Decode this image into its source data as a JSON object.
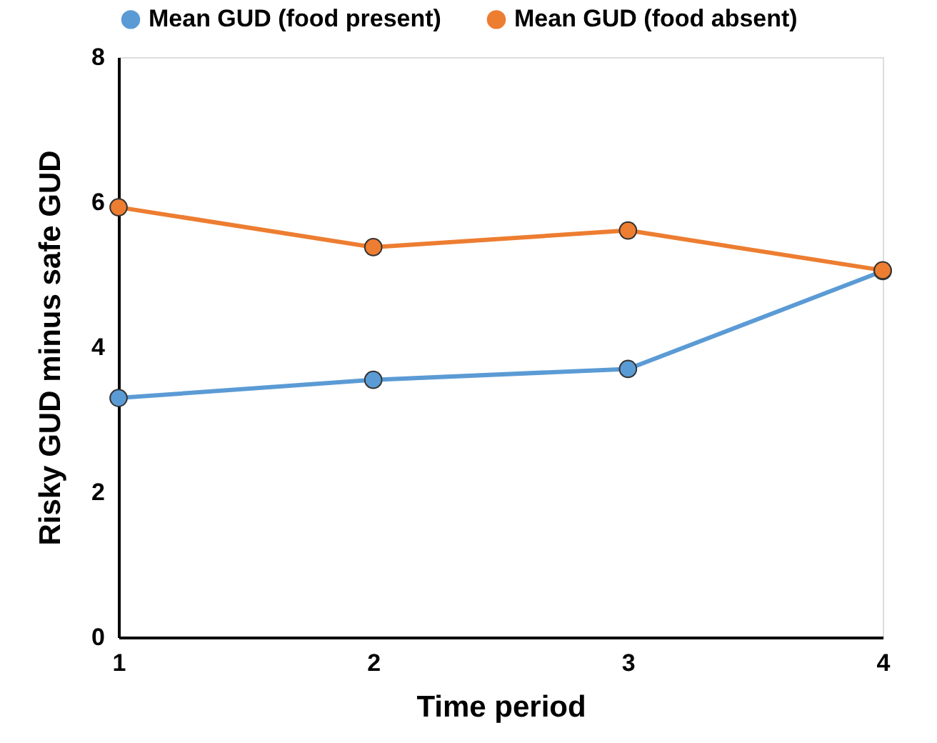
{
  "chart_data": {
    "type": "line",
    "xlabel": "Time period",
    "ylabel": "Risky GUD minus safe GUD",
    "x": [
      1,
      2,
      3,
      4
    ],
    "series": [
      {
        "name": "Mean GUD (food present)",
        "color": "#5b9bd5",
        "values": [
          3.3,
          3.55,
          3.7,
          5.05
        ]
      },
      {
        "name": "Mean GUD (food absent)",
        "color": "#ed7d31",
        "values": [
          5.93,
          5.38,
          5.61,
          5.06
        ]
      }
    ],
    "xlim": [
      1,
      4
    ],
    "xticks": [
      1,
      2,
      3,
      4
    ],
    "ylim": [
      0,
      8
    ],
    "yticks": [
      0,
      2,
      4,
      6,
      8
    ],
    "grid": false,
    "legend": "top",
    "marker": "circle",
    "line_style": "solid"
  }
}
